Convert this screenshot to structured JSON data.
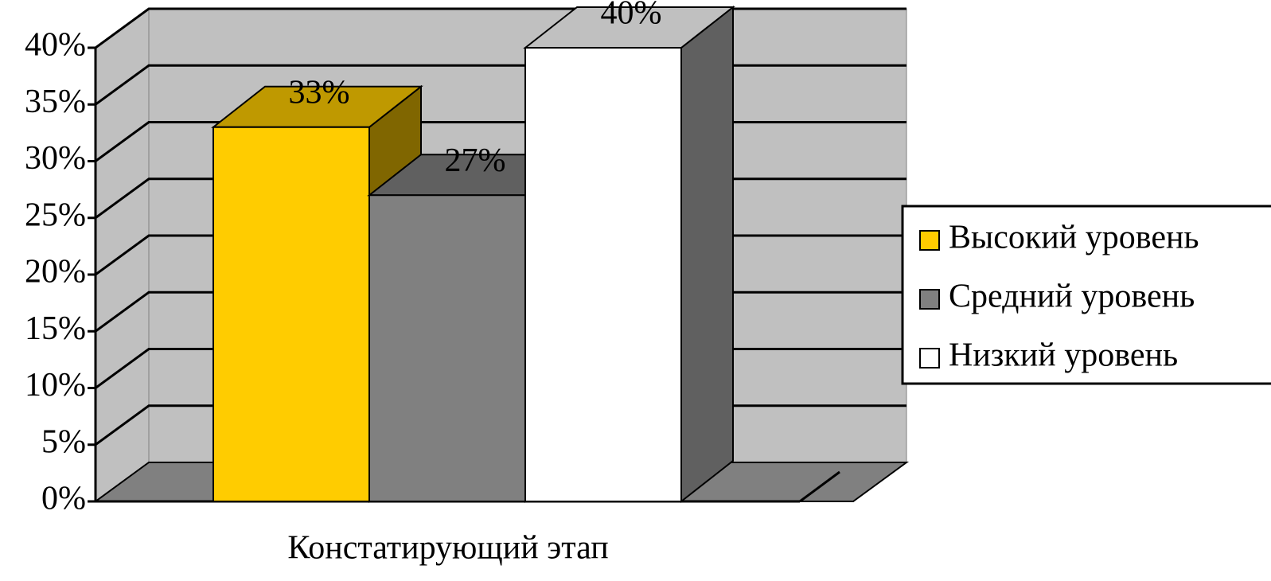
{
  "chart_data": {
    "type": "bar3d",
    "categories": [
      "Констатирующий этап"
    ],
    "series": [
      {
        "name": "Высокий уровень",
        "color": "#ffcc00",
        "values": [
          33
        ],
        "value_labels": [
          "33%"
        ]
      },
      {
        "name": "Средний уровень",
        "color": "#808080",
        "values": [
          27
        ],
        "value_labels": [
          "27%"
        ]
      },
      {
        "name": "Низкий уровень",
        "color": "#ffffff",
        "values": [
          40
        ],
        "value_labels": [
          "40%"
        ]
      }
    ],
    "ylim": [
      0,
      40
    ],
    "yticks": [
      {
        "value": 0,
        "label": "0%"
      },
      {
        "value": 5,
        "label": "5%"
      },
      {
        "value": 10,
        "label": "10%"
      },
      {
        "value": 15,
        "label": "15%"
      },
      {
        "value": 20,
        "label": "20%"
      },
      {
        "value": 25,
        "label": "25%"
      },
      {
        "value": 30,
        "label": "30%"
      },
      {
        "value": 35,
        "label": "35%"
      },
      {
        "value": 40,
        "label": "40%"
      }
    ],
    "grid": true,
    "legend": "right"
  }
}
